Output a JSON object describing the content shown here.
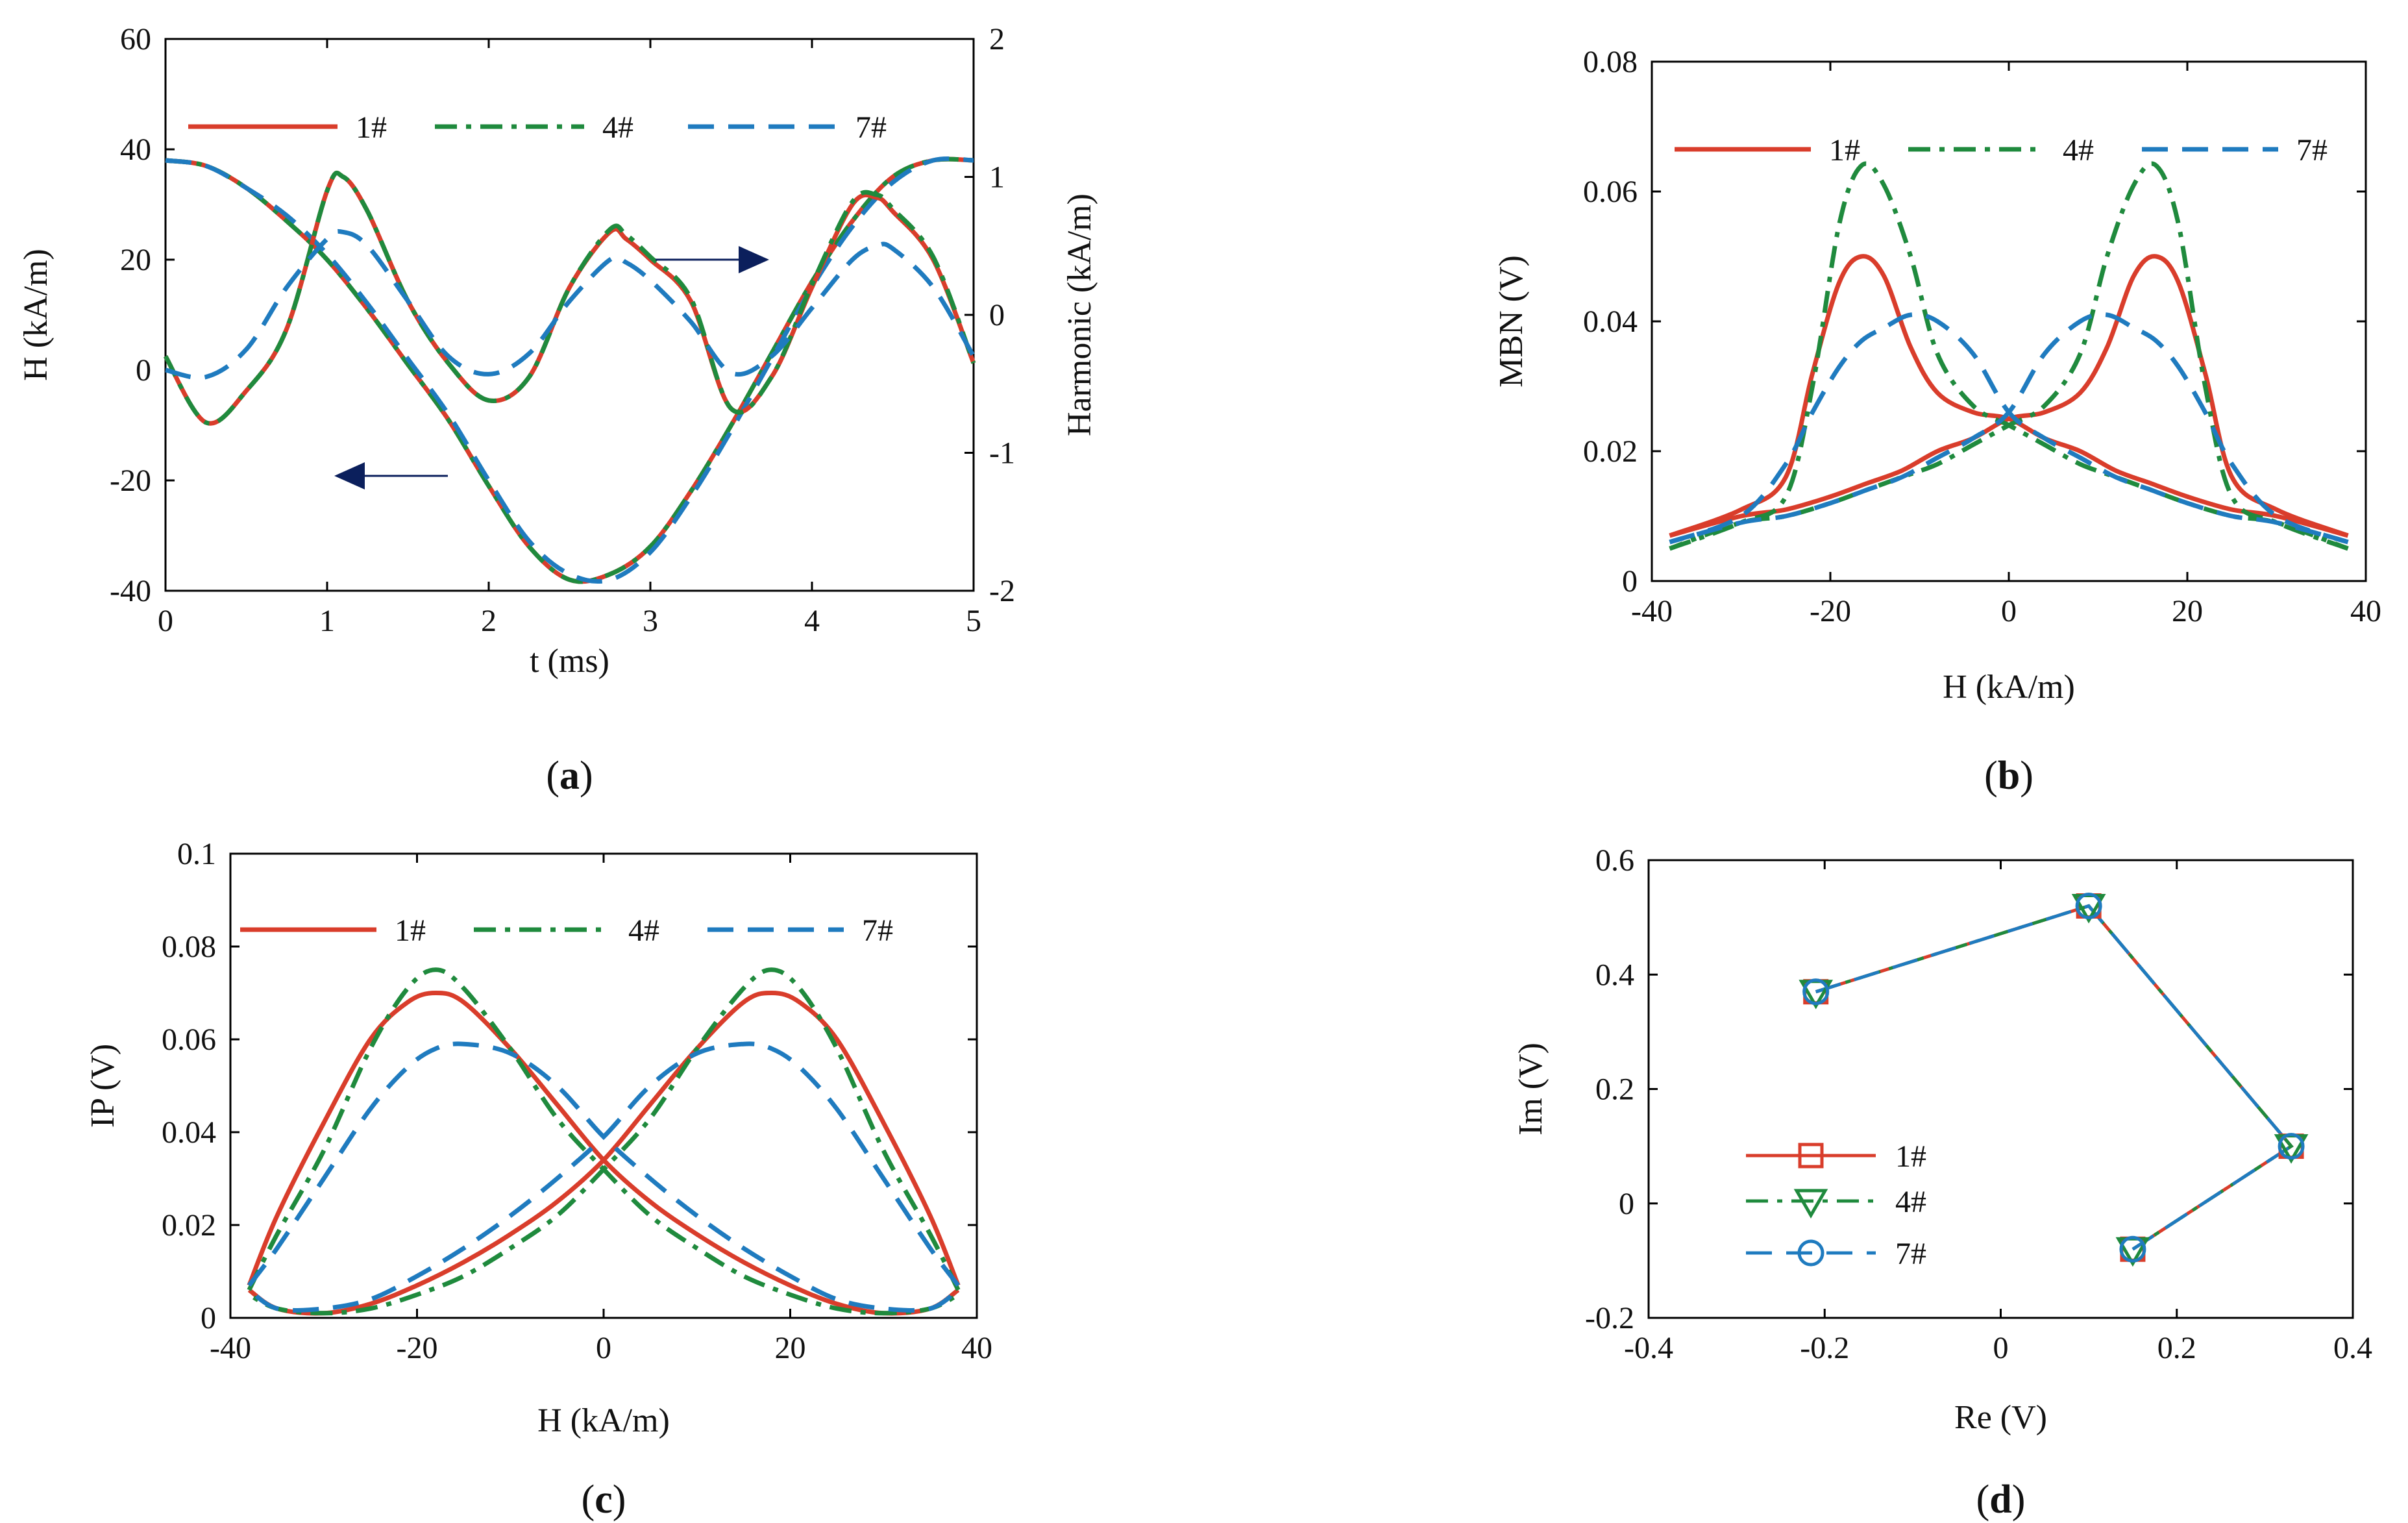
{
  "colors": {
    "s1": "#d93d2b",
    "s4": "#1f8a3d",
    "s7": "#1f7bbf",
    "arrow": "#0b1f5c"
  },
  "chart_data": [
    {
      "id": "a",
      "panel_label": "a",
      "type": "line",
      "xlabel": "t (ms)",
      "ylabel": "H (kA/m)",
      "y2label": "Harmonic (kA/m)",
      "xlim": [
        0,
        5
      ],
      "ylim": [
        -40,
        60
      ],
      "y2lim": [
        -2,
        2
      ],
      "xticks": [
        "0",
        "1",
        "2",
        "3",
        "4",
        "5"
      ],
      "yticks": [
        "-40",
        "-20",
        "0",
        "20",
        "40",
        "60"
      ],
      "y2ticks": [
        "-2",
        "-1",
        "0",
        "1",
        "2"
      ],
      "legend": [
        "1#",
        "4#",
        "7#"
      ],
      "field_H_axis": "left",
      "field_H": {
        "x": [
          0,
          0.25,
          0.5,
          0.75,
          1,
          1.25,
          1.5,
          1.75,
          2,
          2.25,
          2.5,
          2.75,
          3,
          3.25,
          3.5,
          3.75,
          4,
          4.25,
          4.5,
          4.75,
          5
        ],
        "series": [
          {
            "name": "1#",
            "values": [
              38,
              37,
              33,
              27,
              20,
              11,
              1,
              -9,
              -21,
              -32,
              -38,
              -37,
              -32,
              -22,
              -10,
              3,
              16,
              27,
              35,
              38,
              38
            ]
          },
          {
            "name": "4#",
            "values": [
              38,
              37,
              33,
              27,
              20,
              11,
              1,
              -9,
              -21,
              -32,
              -38,
              -37,
              -32,
              -22,
              -10,
              3,
              16,
              27,
              35,
              38,
              38
            ]
          },
          {
            "name": "7#",
            "values": [
              38,
              37,
              33,
              28,
              21,
              12,
              2,
              -8,
              -20,
              -31,
              -37,
              -38,
              -33,
              -23,
              -11,
              2,
              15,
              26,
              34,
              38,
              38
            ]
          }
        ]
      },
      "harmonic_axis": "right",
      "harmonic": {
        "x": [
          0,
          0.25,
          0.5,
          0.75,
          1,
          1.1,
          1.25,
          1.5,
          1.75,
          2,
          2.25,
          2.5,
          2.75,
          2.85,
          3,
          3.25,
          3.5,
          3.75,
          4,
          4.25,
          4.4,
          4.5,
          4.75,
          5
        ],
        "series": [
          {
            "name": "1#",
            "values": [
              -0.3,
              -0.78,
              -0.55,
              -0.1,
              0.9,
              1.0,
              0.75,
              0.1,
              -0.35,
              -0.62,
              -0.45,
              0.2,
              0.6,
              0.55,
              0.4,
              0.1,
              -0.68,
              -0.45,
              0.2,
              0.8,
              0.85,
              0.75,
              0.4,
              -0.35
            ]
          },
          {
            "name": "4#",
            "values": [
              -0.3,
              -0.78,
              -0.55,
              -0.1,
              0.9,
              1.0,
              0.75,
              0.1,
              -0.35,
              -0.62,
              -0.45,
              0.2,
              0.62,
              0.58,
              0.42,
              0.12,
              -0.68,
              -0.45,
              0.22,
              0.82,
              0.87,
              0.77,
              0.42,
              -0.35
            ]
          },
          {
            "name": "7#",
            "values": [
              -0.4,
              -0.45,
              -0.25,
              0.2,
              0.55,
              0.6,
              0.5,
              0.1,
              -0.3,
              -0.43,
              -0.28,
              0.1,
              0.4,
              0.38,
              0.25,
              -0.05,
              -0.42,
              -0.3,
              0.05,
              0.4,
              0.5,
              0.48,
              0.2,
              -0.3
            ]
          }
        ]
      }
    },
    {
      "id": "b",
      "panel_label": "b",
      "type": "line",
      "xlabel": "H (kA/m)",
      "ylabel": "MBN (V)",
      "xlim": [
        -40,
        40
      ],
      "ylim": [
        0,
        0.08
      ],
      "xticks": [
        "-40",
        "-20",
        "0",
        "20",
        "40"
      ],
      "yticks": [
        "0",
        "0.02",
        "0.04",
        "0.06",
        "0.08"
      ],
      "legend": [
        "1#",
        "4#",
        "7#"
      ],
      "x": [
        -38,
        -30,
        -25,
        -22,
        -19,
        -16.5,
        -14,
        -11,
        -8,
        -4,
        0,
        4,
        8,
        12,
        16,
        20,
        25,
        30,
        38
      ],
      "series": [
        {
          "name": "1#",
          "values": [
            0.007,
            0.011,
            0.016,
            0.032,
            0.046,
            0.05,
            0.047,
            0.036,
            0.029,
            0.026,
            0.025,
            0.022,
            0.02,
            0.017,
            0.015,
            0.013,
            0.011,
            0.01,
            0.007
          ]
        },
        {
          "name": "4#",
          "values": [
            0.005,
            0.009,
            0.013,
            0.03,
            0.055,
            0.064,
            0.061,
            0.05,
            0.035,
            0.027,
            0.024,
            0.021,
            0.018,
            0.016,
            0.014,
            0.012,
            0.01,
            0.009,
            0.005
          ]
        },
        {
          "name": "7#",
          "values": [
            0.006,
            0.01,
            0.018,
            0.026,
            0.033,
            0.037,
            0.039,
            0.041,
            0.04,
            0.035,
            0.026,
            0.022,
            0.019,
            0.016,
            0.014,
            0.012,
            0.01,
            0.009,
            0.006
          ]
        }
      ]
    },
    {
      "id": "c",
      "panel_label": "c",
      "type": "line",
      "xlabel": "H (kA/m)",
      "ylabel": "IP (V)",
      "xlim": [
        -40,
        40
      ],
      "ylim": [
        0,
        0.1
      ],
      "xticks": [
        "-40",
        "-20",
        "0",
        "20",
        "40"
      ],
      "yticks": [
        "0",
        "0.02",
        "0.04",
        "0.06",
        "0.08",
        "0.1"
      ],
      "legend": [
        "1#",
        "4#",
        "7#"
      ],
      "x": [
        -38,
        -35,
        -30,
        -25,
        -21,
        -18,
        -15,
        -10,
        -5,
        0,
        5,
        10,
        15,
        20,
        25,
        30,
        35,
        38
      ],
      "series": [
        {
          "name": "1#",
          "values": [
            0.007,
            0.022,
            0.042,
            0.06,
            0.068,
            0.07,
            0.068,
            0.058,
            0.046,
            0.034,
            0.025,
            0.018,
            0.012,
            0.007,
            0.003,
            0.001,
            0.002,
            0.006
          ]
        },
        {
          "name": "4#",
          "values": [
            0.006,
            0.018,
            0.036,
            0.058,
            0.071,
            0.075,
            0.071,
            0.058,
            0.043,
            0.032,
            0.022,
            0.015,
            0.009,
            0.005,
            0.002,
            0.001,
            0.002,
            0.005
          ]
        },
        {
          "name": "7#",
          "values": [
            0.007,
            0.015,
            0.03,
            0.045,
            0.054,
            0.058,
            0.059,
            0.057,
            0.05,
            0.039,
            0.03,
            0.022,
            0.015,
            0.009,
            0.004,
            0.002,
            0.002,
            0.006
          ]
        }
      ]
    },
    {
      "id": "d",
      "panel_label": "d",
      "type": "scatter",
      "xlabel": "Re (V)",
      "ylabel": "Im (V)",
      "xlim": [
        -0.4,
        0.4
      ],
      "ylim": [
        -0.2,
        0.6
      ],
      "xticks": [
        "-0.4",
        "-0.2",
        "0",
        "0.2",
        "0.4"
      ],
      "yticks": [
        "-0.2",
        "0",
        "0.2",
        "0.4",
        "0.6"
      ],
      "legend": [
        "1#",
        "4#",
        "7#"
      ],
      "markers": [
        "square",
        "triangle-down",
        "circle"
      ],
      "series": [
        {
          "name": "1#",
          "x": [
            -0.21,
            0.1,
            0.33,
            0.15
          ],
          "y": [
            0.37,
            0.52,
            0.1,
            -0.08
          ]
        },
        {
          "name": "4#",
          "x": [
            -0.21,
            0.1,
            0.33,
            0.15
          ],
          "y": [
            0.37,
            0.52,
            0.1,
            -0.08
          ]
        },
        {
          "name": "7#",
          "x": [
            -0.21,
            0.1,
            0.33,
            0.15
          ],
          "y": [
            0.37,
            0.52,
            0.1,
            -0.08
          ]
        }
      ]
    }
  ]
}
